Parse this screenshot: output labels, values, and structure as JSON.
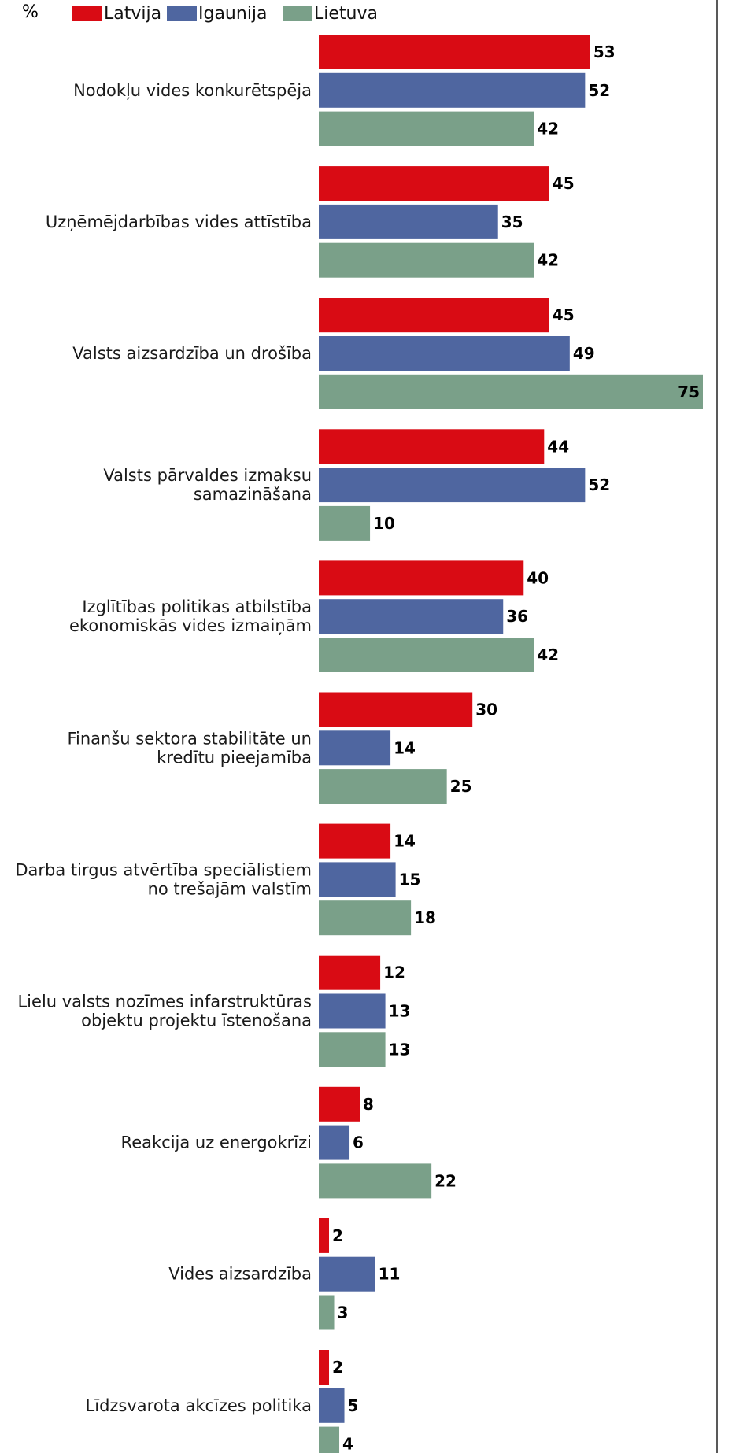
{
  "chart_data": {
    "type": "bar",
    "orientation": "horizontal",
    "unit_symbol": "%",
    "categories": [
      [
        "Nodokļu vides konkurētspēja"
      ],
      [
        "Uzņēmējdarbības vides attīstība"
      ],
      [
        "Valsts aizsardzība un drošība"
      ],
      [
        "Valsts pārvaldes izmaksu",
        "samazināšana"
      ],
      [
        "Izglītības politikas atbilstība",
        "ekonomiskās vides izmaiņām"
      ],
      [
        "Finanšu sektora stabilitāte un",
        "kredītu pieejamība"
      ],
      [
        "Darba tirgus atvērtība speciālistiem",
        "no trešajām valstīm"
      ],
      [
        "Lielu valsts nozīmes infarstruktūras",
        "objektu projektu īstenošana"
      ],
      [
        "Reakcija uz energokrīzi"
      ],
      [
        "Vides aizsardzība"
      ],
      [
        "Līdzsvarota akcīzes politika"
      ]
    ],
    "series": [
      {
        "name": "Latvija",
        "color": "#d90b14",
        "values": [
          53,
          45,
          45,
          44,
          40,
          30,
          14,
          12,
          8,
          2,
          2
        ]
      },
      {
        "name": "Igaunija",
        "color": "#4f66a0",
        "values": [
          52,
          35,
          49,
          52,
          36,
          14,
          15,
          13,
          6,
          11,
          5
        ]
      },
      {
        "name": "Lietuva",
        "color": "#7aa089",
        "values": [
          42,
          42,
          75,
          10,
          42,
          25,
          18,
          13,
          22,
          3,
          4
        ]
      }
    ],
    "xlim": [
      0,
      75
    ],
    "grid": false,
    "legend_position": "top-left",
    "data_labels": true
  }
}
